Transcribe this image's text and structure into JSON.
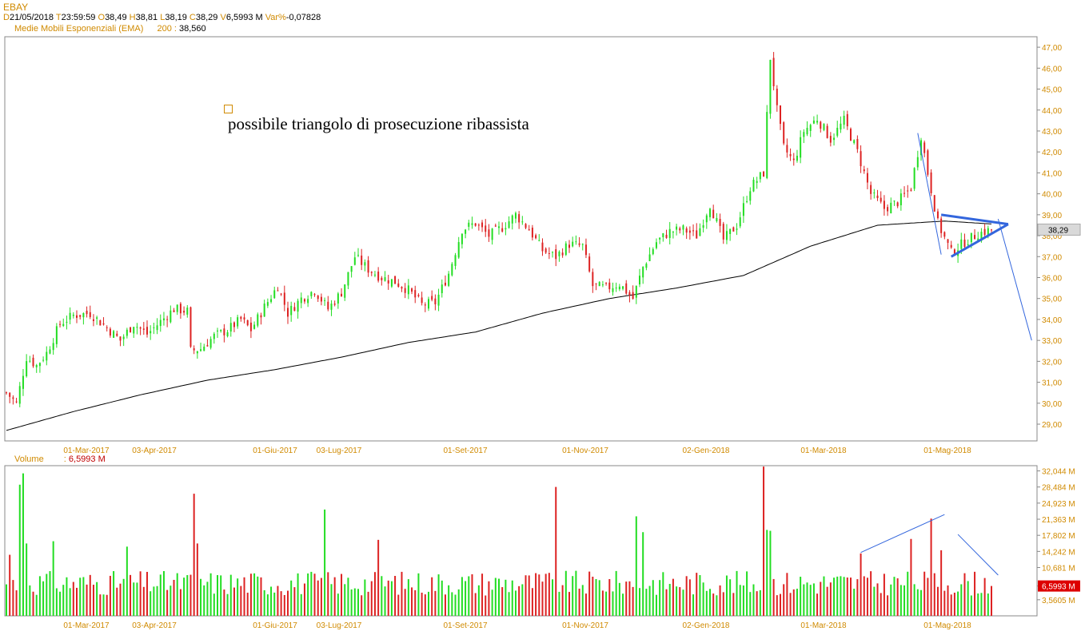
{
  "header": {
    "symbol": "EBAY",
    "d_label": "D",
    "date": "21/05/2018",
    "t_label": "T",
    "time": "23:59:59",
    "o_label": "O",
    "open": "38,49",
    "h_label": "H",
    "high": "38,81",
    "l_label": "L",
    "low": "38,19",
    "c_label": "C",
    "close": "38,29",
    "v_label": "V",
    "volume": "6,5993 M",
    "var_label": "Var%",
    "var": "-0,07828"
  },
  "indicator": {
    "name": "Medie Mobili Esponenziali (EMA)",
    "period": "200",
    "sep": ":",
    "value": "38,560"
  },
  "volume_panel": {
    "label": "Volume",
    "sep": ":",
    "value": "6,5993 M"
  },
  "colors": {
    "up": "#22dd22",
    "down": "#dd2222",
    "ema": "#000000",
    "pattern": "#3366dd",
    "axis_text": "#d08a00"
  },
  "chart_data": [
    {
      "type": "candlestick",
      "title": "",
      "annotation": "possibile triangolo di prosecuzione ribassista",
      "y_ticks": [
        "29,00",
        "30,00",
        "31,00",
        "32,00",
        "33,00",
        "34,00",
        "35,00",
        "36,00",
        "37,00",
        "38,00",
        "39,00",
        "40,00",
        "41,00",
        "42,00",
        "43,00",
        "44,00",
        "45,00",
        "46,00",
        "47,00"
      ],
      "ylim": [
        28.2,
        47.5
      ],
      "x_ticks": [
        "01-Mar-2017",
        "03-Apr-2017",
        "01-Giu-2017",
        "03-Lug-2017",
        "01-Set-2017",
        "01-Nov-2017",
        "02-Gen-2018",
        "01-Mar-2018",
        "01-Mag-2018"
      ],
      "last_price_label": "38,29",
      "close_path": [
        [
          0,
          30.5
        ],
        [
          3,
          30.0
        ],
        [
          6,
          32.2
        ],
        [
          9,
          31.8
        ],
        [
          12,
          32.4
        ],
        [
          16,
          33.8
        ],
        [
          20,
          34.2
        ],
        [
          25,
          34.3
        ],
        [
          30,
          33.6
        ],
        [
          34,
          33.0
        ],
        [
          38,
          33.8
        ],
        [
          42,
          33.3
        ],
        [
          46,
          33.9
        ],
        [
          50,
          34.5
        ],
        [
          54,
          34.4
        ],
        [
          55,
          32.5
        ],
        [
          58,
          32.6
        ],
        [
          62,
          33.2
        ],
        [
          66,
          33.5
        ],
        [
          70,
          34.0
        ],
        [
          73,
          33.5
        ],
        [
          77,
          34.6
        ],
        [
          81,
          35.6
        ],
        [
          84,
          34.3
        ],
        [
          88,
          35.0
        ],
        [
          92,
          35.4
        ],
        [
          96,
          34.5
        ],
        [
          100,
          35.3
        ],
        [
          104,
          37.0
        ],
        [
          108,
          36.4
        ],
        [
          112,
          36.0
        ],
        [
          116,
          35.8
        ],
        [
          120,
          35.4
        ],
        [
          124,
          34.7
        ],
        [
          128,
          34.8
        ],
        [
          132,
          36.2
        ],
        [
          136,
          38.3
        ],
        [
          140,
          38.6
        ],
        [
          144,
          38.0
        ],
        [
          148,
          38.4
        ],
        [
          152,
          39.0
        ],
        [
          156,
          38.3
        ],
        [
          160,
          37.3
        ],
        [
          164,
          37.0
        ],
        [
          168,
          37.6
        ],
        [
          172,
          37.5
        ],
        [
          175,
          35.6
        ],
        [
          179,
          35.5
        ],
        [
          183,
          35.7
        ],
        [
          187,
          35.0
        ],
        [
          190,
          36.5
        ],
        [
          194,
          37.7
        ],
        [
          198,
          38.2
        ],
        [
          202,
          38.3
        ],
        [
          206,
          38.0
        ],
        [
          210,
          39.5
        ],
        [
          214,
          37.8
        ],
        [
          218,
          38.5
        ],
        [
          222,
          40.3
        ],
        [
          226,
          41.0
        ],
        [
          228,
          46.5
        ],
        [
          230,
          44.0
        ],
        [
          232,
          42.2
        ],
        [
          235,
          41.5
        ],
        [
          238,
          43.0
        ],
        [
          242,
          43.6
        ],
        [
          246,
          42.6
        ],
        [
          250,
          43.5
        ],
        [
          254,
          42.0
        ],
        [
          258,
          40.0
        ],
        [
          262,
          39.3
        ],
        [
          266,
          39.6
        ],
        [
          270,
          40.3
        ],
        [
          273,
          42.8
        ],
        [
          275,
          41.0
        ],
        [
          278,
          38.6
        ],
        [
          282,
          37.2
        ],
        [
          286,
          37.7
        ],
        [
          290,
          38.1
        ],
        [
          294,
          38.29
        ]
      ],
      "ema": [
        [
          0,
          28.7
        ],
        [
          20,
          29.6
        ],
        [
          40,
          30.4
        ],
        [
          60,
          31.1
        ],
        [
          80,
          31.6
        ],
        [
          100,
          32.2
        ],
        [
          120,
          32.9
        ],
        [
          140,
          33.4
        ],
        [
          160,
          34.3
        ],
        [
          180,
          35.0
        ],
        [
          200,
          35.5
        ],
        [
          220,
          36.1
        ],
        [
          240,
          37.5
        ],
        [
          260,
          38.5
        ],
        [
          280,
          38.7
        ],
        [
          294,
          38.56
        ]
      ],
      "triangle": {
        "upper": [
          [
            279,
            39.0
          ],
          [
            299,
            38.55
          ]
        ],
        "lower": [
          [
            282,
            37.0
          ],
          [
            299,
            38.55
          ]
        ],
        "apex_breakout": [
          [
            296,
            38.8
          ],
          [
            306,
            33.0
          ]
        ]
      },
      "prior_trend_line": [
        [
          272,
          42.9
        ],
        [
          279,
          37.1
        ]
      ]
    },
    {
      "type": "bar",
      "title": "",
      "y_ticks": [
        "3,5605 M",
        "6,5993 M",
        "10,681 M",
        "14,242 M",
        "17,802 M",
        "21,363 M",
        "24,923 M",
        "28,484 M",
        "32,044 M"
      ],
      "ylim": [
        0,
        33.2
      ],
      "x_ticks": [
        "01-Mar-2017",
        "03-Apr-2017",
        "01-Giu-2017",
        "03-Lug-2017",
        "01-Set-2017",
        "01-Nov-2017",
        "02-Gen-2018",
        "01-Mar-2018",
        "01-Mag-2018"
      ],
      "last_value": 6.5993,
      "spikes": [
        [
          1,
          13.5
        ],
        [
          4,
          29.0
        ],
        [
          5,
          31.5
        ],
        [
          6,
          16.0
        ],
        [
          14,
          16.5
        ],
        [
          36,
          15.3
        ],
        [
          56,
          27.0
        ],
        [
          57,
          16.0
        ],
        [
          95,
          23.5
        ],
        [
          111,
          16.8
        ],
        [
          164,
          28.5
        ],
        [
          188,
          22.0
        ],
        [
          190,
          18.5
        ],
        [
          226,
          33.0
        ],
        [
          227,
          19.0
        ],
        [
          228,
          18.8
        ],
        [
          255,
          13.8
        ],
        [
          270,
          17.0
        ],
        [
          276,
          21.5
        ],
        [
          279,
          14.5
        ]
      ],
      "volume_trend_line": [
        [
          255,
          14.0
        ],
        [
          280,
          22.4
        ]
      ],
      "volume_decline_line": [
        [
          284,
          18.0
        ],
        [
          296,
          9.0
        ]
      ]
    }
  ]
}
